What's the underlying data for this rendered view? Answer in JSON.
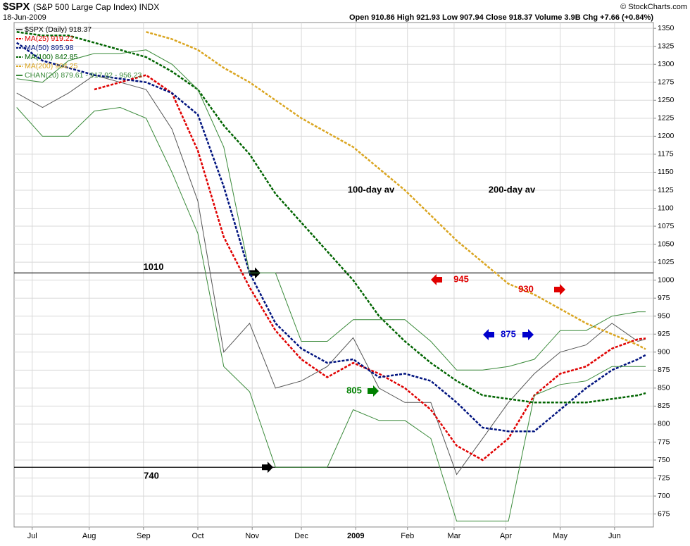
{
  "chart_data": {
    "type": "line",
    "title": "$SPX",
    "subtitle": "(S&P 500 Large Cap Index) INDX",
    "date": "18-Jun-2009",
    "quote": "Open 910.86 High 921.93 Low 907.94 Close 918.37 Volume 3.9B Chg +7.66 (+0.84%)",
    "source": "© StockCharts.com",
    "x": [
      0,
      10,
      20,
      30,
      40,
      50,
      60,
      70,
      80,
      90,
      100,
      110,
      120,
      130,
      140,
      150,
      160,
      170,
      180,
      190,
      200,
      210,
      220,
      230,
      240,
      243
    ],
    "xlim": [
      -1,
      246
    ],
    "xticks": [
      {
        "value": 6,
        "label": "Jul"
      },
      {
        "value": 28,
        "label": "Aug"
      },
      {
        "value": 49,
        "label": "Sep"
      },
      {
        "value": 70,
        "label": "Oct"
      },
      {
        "value": 91,
        "label": "Nov"
      },
      {
        "value": 110,
        "label": "Dec"
      },
      {
        "value": 131,
        "label": "2009"
      },
      {
        "value": 151,
        "label": "Feb"
      },
      {
        "value": 169,
        "label": "Mar"
      },
      {
        "value": 189,
        "label": "Apr"
      },
      {
        "value": 210,
        "label": "May"
      },
      {
        "value": 231,
        "label": "Jun"
      }
    ],
    "ylim": [
      657,
      1358
    ],
    "yticks": [
      675,
      700,
      725,
      750,
      775,
      800,
      825,
      850,
      875,
      900,
      925,
      950,
      975,
      1000,
      1025,
      1050,
      1075,
      1100,
      1125,
      1150,
      1175,
      1200,
      1225,
      1250,
      1275,
      1300,
      1325,
      1350
    ],
    "grid": true,
    "series": [
      {
        "name": "$SPX (Daily) 918.37",
        "color": "#555555",
        "values": [
          1260,
          1240,
          1260,
          1285,
          1275,
          1265,
          1210,
          1110,
          900,
          940,
          850,
          860,
          880,
          920,
          850,
          830,
          830,
          730,
          780,
          830,
          870,
          900,
          910,
          940,
          915,
          918
        ]
      },
      {
        "name": "MA(25) 919.22",
        "color": "#e00000",
        "values": [
          null,
          null,
          null,
          1265,
          1275,
          1285,
          1260,
          1180,
          1060,
          990,
          930,
          890,
          865,
          885,
          870,
          850,
          820,
          770,
          750,
          780,
          840,
          870,
          880,
          905,
          918,
          919
        ]
      },
      {
        "name": "MA(50) 895.98",
        "color": "#00137f",
        "values": [
          1330,
          1305,
          1295,
          1285,
          1280,
          1275,
          1260,
          1230,
          1130,
          1010,
          940,
          905,
          885,
          890,
          865,
          870,
          860,
          830,
          795,
          790,
          790,
          820,
          850,
          875,
          890,
          896
        ]
      },
      {
        "name": "MA(100) 842.85",
        "color": "#006400",
        "values": [
          1345,
          1340,
          1340,
          1330,
          1320,
          1310,
          1290,
          1265,
          1215,
          1175,
          1120,
          1080,
          1040,
          1000,
          950,
          915,
          885,
          860,
          840,
          835,
          830,
          830,
          830,
          835,
          840,
          843
        ]
      },
      {
        "name": "MA(200) 904.25",
        "color": "#daa520",
        "values": [
          null,
          null,
          null,
          null,
          null,
          1345,
          1335,
          1320,
          1295,
          1275,
          1250,
          1225,
          1205,
          1185,
          1155,
          1125,
          1090,
          1055,
          1025,
          995,
          980,
          960,
          940,
          925,
          910,
          904
        ]
      },
      {
        "name": "CHAN(20) 879.61 - 917.92 - 956.23",
        "color": "#3a8a3a",
        "values": [
          1280,
          1275,
          1305,
          1315,
          1315,
          1320,
          1300,
          1265,
          1185,
          1010,
          1010,
          915,
          915,
          945,
          945,
          945,
          915,
          875,
          875,
          880,
          890,
          930,
          930,
          950,
          956,
          956
        ],
        "lower_values": [
          1240,
          1200,
          1200,
          1235,
          1240,
          1225,
          1150,
          1065,
          880,
          845,
          740,
          740,
          740,
          820,
          805,
          805,
          780,
          665,
          665,
          665,
          840,
          855,
          860,
          880,
          880,
          880
        ]
      }
    ],
    "hlines": [
      1010,
      740
    ],
    "annotations": [
      "100-day av",
      "200-day av",
      "945",
      "930",
      "875",
      "805"
    ]
  }
}
